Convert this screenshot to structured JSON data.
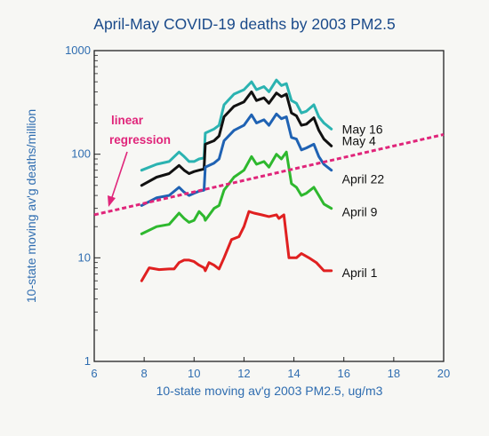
{
  "chart_data": {
    "type": "line",
    "title": "April-May COVID-19 deaths by 2003 PM2.5",
    "xlabel": "10-state moving av'g 2003 PM2.5, ug/m3",
    "ylabel": "10-state moving av'g deaths/million",
    "xlim": [
      6,
      20
    ],
    "ylim": [
      1,
      1000
    ],
    "yscale": "log",
    "x_ticks": [
      "6",
      "8",
      "10",
      "12",
      "14",
      "16",
      "18",
      "20"
    ],
    "y_ticks": [
      "1",
      "10",
      "100",
      "1000"
    ],
    "grid": false,
    "legend": "labels at line ends (right)",
    "series": [
      {
        "name": "May 16",
        "color": "#2bb3b1",
        "points": [
          [
            7.9,
            70
          ],
          [
            8.5,
            80
          ],
          [
            9.0,
            85
          ],
          [
            9.4,
            105
          ],
          [
            9.6,
            95
          ],
          [
            9.8,
            85
          ],
          [
            10.0,
            85
          ],
          [
            10.2,
            90
          ],
          [
            10.4,
            92
          ],
          [
            10.45,
            160
          ],
          [
            10.8,
            175
          ],
          [
            11.0,
            190
          ],
          [
            11.2,
            300
          ],
          [
            11.6,
            380
          ],
          [
            12.0,
            420
          ],
          [
            12.3,
            500
          ],
          [
            12.5,
            420
          ],
          [
            12.8,
            450
          ],
          [
            13.0,
            400
          ],
          [
            13.3,
            520
          ],
          [
            13.5,
            460
          ],
          [
            13.7,
            480
          ],
          [
            13.9,
            330
          ],
          [
            14.1,
            310
          ],
          [
            14.3,
            250
          ],
          [
            14.5,
            260
          ],
          [
            14.8,
            300
          ],
          [
            15.0,
            230
          ],
          [
            15.2,
            200
          ],
          [
            15.5,
            175
          ]
        ]
      },
      {
        "name": "May 4",
        "color": "#111111",
        "points": [
          [
            7.9,
            50
          ],
          [
            8.5,
            60
          ],
          [
            9.0,
            65
          ],
          [
            9.4,
            78
          ],
          [
            9.6,
            70
          ],
          [
            9.8,
            65
          ],
          [
            10.0,
            68
          ],
          [
            10.2,
            70
          ],
          [
            10.4,
            72
          ],
          [
            10.45,
            125
          ],
          [
            10.8,
            135
          ],
          [
            11.0,
            150
          ],
          [
            11.2,
            230
          ],
          [
            11.6,
            290
          ],
          [
            12.0,
            320
          ],
          [
            12.3,
            400
          ],
          [
            12.5,
            330
          ],
          [
            12.8,
            350
          ],
          [
            13.0,
            310
          ],
          [
            13.3,
            390
          ],
          [
            13.5,
            360
          ],
          [
            13.7,
            380
          ],
          [
            13.9,
            250
          ],
          [
            14.1,
            235
          ],
          [
            14.3,
            190
          ],
          [
            14.5,
            195
          ],
          [
            14.8,
            225
          ],
          [
            15.0,
            170
          ],
          [
            15.2,
            140
          ],
          [
            15.5,
            120
          ]
        ]
      },
      {
        "name": "April 22",
        "color": "#1f62b3",
        "points": [
          [
            7.9,
            32
          ],
          [
            8.5,
            38
          ],
          [
            9.0,
            40
          ],
          [
            9.4,
            48
          ],
          [
            9.6,
            43
          ],
          [
            9.8,
            40
          ],
          [
            10.0,
            42
          ],
          [
            10.2,
            44
          ],
          [
            10.4,
            45
          ],
          [
            10.45,
            75
          ],
          [
            10.8,
            82
          ],
          [
            11.0,
            90
          ],
          [
            11.2,
            135
          ],
          [
            11.6,
            170
          ],
          [
            12.0,
            190
          ],
          [
            12.3,
            240
          ],
          [
            12.5,
            200
          ],
          [
            12.8,
            215
          ],
          [
            13.0,
            190
          ],
          [
            13.3,
            245
          ],
          [
            13.5,
            220
          ],
          [
            13.7,
            230
          ],
          [
            13.9,
            145
          ],
          [
            14.1,
            140
          ],
          [
            14.3,
            110
          ],
          [
            14.5,
            115
          ],
          [
            14.8,
            125
          ],
          [
            15.0,
            95
          ],
          [
            15.2,
            80
          ],
          [
            15.5,
            70
          ]
        ]
      },
      {
        "name": "April 9",
        "color": "#2eb82e",
        "points": [
          [
            7.9,
            17
          ],
          [
            8.5,
            20
          ],
          [
            9.0,
            21
          ],
          [
            9.4,
            27
          ],
          [
            9.6,
            24
          ],
          [
            9.8,
            22
          ],
          [
            10.0,
            23
          ],
          [
            10.2,
            28
          ],
          [
            10.4,
            25
          ],
          [
            10.45,
            23
          ],
          [
            10.8,
            30
          ],
          [
            11.0,
            32
          ],
          [
            11.2,
            45
          ],
          [
            11.6,
            60
          ],
          [
            12.0,
            70
          ],
          [
            12.3,
            95
          ],
          [
            12.5,
            80
          ],
          [
            12.8,
            85
          ],
          [
            13.0,
            75
          ],
          [
            13.3,
            100
          ],
          [
            13.5,
            90
          ],
          [
            13.7,
            105
          ],
          [
            13.9,
            52
          ],
          [
            14.1,
            48
          ],
          [
            14.3,
            40
          ],
          [
            14.5,
            42
          ],
          [
            14.8,
            48
          ],
          [
            15.0,
            40
          ],
          [
            15.2,
            33
          ],
          [
            15.5,
            30
          ]
        ]
      },
      {
        "name": "April 1",
        "color": "#e02020",
        "points": [
          [
            7.9,
            6
          ],
          [
            8.2,
            8
          ],
          [
            8.6,
            7.7
          ],
          [
            9.0,
            7.8
          ],
          [
            9.2,
            7.8
          ],
          [
            9.4,
            9
          ],
          [
            9.6,
            9.5
          ],
          [
            9.8,
            9.5
          ],
          [
            10.0,
            9.2
          ],
          [
            10.2,
            8.5
          ],
          [
            10.4,
            8
          ],
          [
            10.45,
            7.5
          ],
          [
            10.6,
            9
          ],
          [
            10.8,
            8.5
          ],
          [
            11.0,
            7.8
          ],
          [
            11.2,
            10
          ],
          [
            11.5,
            15
          ],
          [
            11.8,
            16
          ],
          [
            12.0,
            20
          ],
          [
            12.2,
            28
          ],
          [
            12.4,
            27
          ],
          [
            12.7,
            26
          ],
          [
            13.0,
            25
          ],
          [
            13.3,
            26
          ],
          [
            13.4,
            24
          ],
          [
            13.6,
            26
          ],
          [
            13.8,
            10
          ],
          [
            14.1,
            10
          ],
          [
            14.3,
            11
          ],
          [
            14.6,
            10
          ],
          [
            14.9,
            9
          ],
          [
            15.2,
            7.5
          ],
          [
            15.5,
            7.5
          ]
        ]
      }
    ],
    "annotations": [
      {
        "text_lines": [
          "linear",
          "regression"
        ],
        "color": "#e0257a",
        "regression_line": {
          "x": [
            6,
            20
          ],
          "y": [
            26,
            155
          ]
        }
      }
    ]
  }
}
